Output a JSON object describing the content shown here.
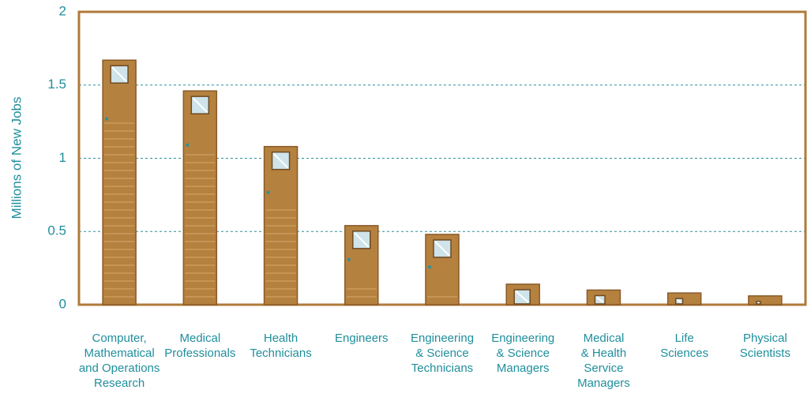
{
  "chart_data": {
    "type": "bar",
    "ylabel": "Millions of New Jobs",
    "categories": [
      "Computer,\nMathematical\nand Operations\nResearch",
      "Medical\nProfessionals",
      "Health\nTechnicians",
      "Engineers",
      "Engineering\n& Science\nTechnicians",
      "Engineering\n& Science\nManagers",
      "Medical\n& Health\nService\nManagers",
      "Life\nSciences",
      "Physical\nScientists"
    ],
    "values": [
      1.67,
      1.46,
      1.08,
      0.54,
      0.48,
      0.14,
      0.1,
      0.08,
      0.06
    ],
    "color": "#b5813f",
    "ylim": [
      0,
      2
    ],
    "yticks": [
      0,
      0.5,
      1,
      1.5,
      2
    ],
    "grid": true
  }
}
